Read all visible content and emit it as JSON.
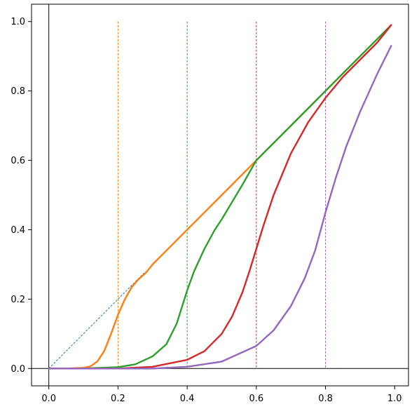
{
  "chart_data": {
    "type": "line",
    "title": "",
    "xlabel": "",
    "ylabel": "",
    "xlim": [
      -0.05,
      1.04
    ],
    "ylim": [
      -0.05,
      1.05
    ],
    "grid": false,
    "x_ticks": [
      "0.0",
      "0.2",
      "0.4",
      "0.6",
      "0.8",
      "1.0"
    ],
    "y_ticks": [
      "0.0",
      "0.2",
      "0.4",
      "0.6",
      "0.8",
      "1.0"
    ],
    "reference_lines": {
      "horizontal_y": 0.0,
      "vertical_x": 0.0,
      "diagonal": {
        "x": [
          0.0,
          0.28
        ],
        "y": [
          0.0,
          0.28
        ],
        "color": "#1f77b4",
        "style": "dashed"
      }
    },
    "thresholds": [
      {
        "x": 0.2,
        "color": "#ff7f0e",
        "y_range": [
          0,
          1
        ]
      },
      {
        "x": 0.4,
        "color": "#2ca02c",
        "y_range": [
          0,
          1
        ]
      },
      {
        "x": 0.6,
        "color": "#d62728",
        "y_range": [
          0,
          1
        ]
      },
      {
        "x": 0.8,
        "color": "#9467bd",
        "y_range": [
          0,
          1
        ]
      }
    ],
    "series": [
      {
        "color": "#ff7f0e",
        "x": [
          0.0,
          0.05,
          0.1,
          0.12,
          0.14,
          0.16,
          0.18,
          0.2,
          0.22,
          0.24,
          0.26,
          0.28,
          0.3,
          0.35,
          0.4,
          0.5,
          0.6,
          0.7,
          0.8,
          0.9,
          0.99
        ],
        "y": [
          0.0,
          0.0,
          0.002,
          0.006,
          0.02,
          0.05,
          0.1,
          0.155,
          0.2,
          0.235,
          0.258,
          0.275,
          0.3,
          0.35,
          0.4,
          0.5,
          0.6,
          0.7,
          0.8,
          0.9,
          0.99
        ]
      },
      {
        "color": "#2ca02c",
        "x": [
          0.0,
          0.1,
          0.2,
          0.25,
          0.3,
          0.34,
          0.37,
          0.4,
          0.42,
          0.45,
          0.48,
          0.5,
          0.53,
          0.56,
          0.6,
          0.7,
          0.8,
          0.9,
          0.99
        ],
        "y": [
          0.0,
          0.0,
          0.004,
          0.012,
          0.035,
          0.07,
          0.13,
          0.225,
          0.28,
          0.345,
          0.4,
          0.43,
          0.48,
          0.53,
          0.6,
          0.7,
          0.8,
          0.9,
          0.99
        ]
      },
      {
        "color": "#d62728",
        "x": [
          0.0,
          0.2,
          0.3,
          0.4,
          0.45,
          0.5,
          0.53,
          0.56,
          0.58,
          0.6,
          0.62,
          0.65,
          0.7,
          0.75,
          0.8,
          0.85,
          0.9,
          0.95,
          0.99
        ],
        "y": [
          0.0,
          0.0,
          0.005,
          0.025,
          0.05,
          0.1,
          0.15,
          0.22,
          0.28,
          0.345,
          0.41,
          0.5,
          0.62,
          0.71,
          0.78,
          0.84,
          0.89,
          0.94,
          0.99
        ]
      },
      {
        "color": "#9467bd",
        "x": [
          0.0,
          0.3,
          0.4,
          0.5,
          0.6,
          0.65,
          0.7,
          0.74,
          0.77,
          0.8,
          0.83,
          0.86,
          0.9,
          0.95,
          0.99
        ],
        "y": [
          0.0,
          0.0,
          0.005,
          0.02,
          0.065,
          0.11,
          0.18,
          0.26,
          0.34,
          0.45,
          0.55,
          0.64,
          0.74,
          0.85,
          0.93
        ]
      }
    ]
  }
}
